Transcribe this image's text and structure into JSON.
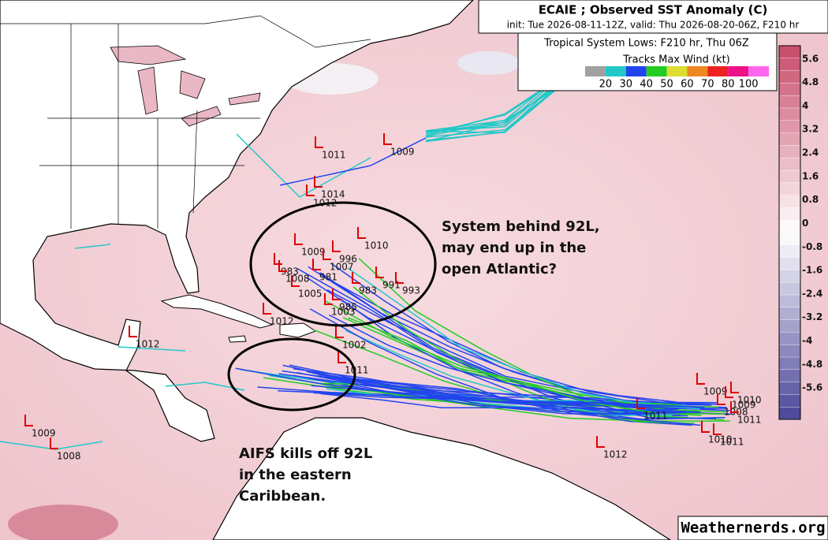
{
  "header": {
    "title": "ECAIE ; Observed SST Anomaly (C)",
    "subtitle": "init: Tue 2026-08-11-12Z, valid: Thu 2026-08-20-06Z, F210 hr"
  },
  "legend": {
    "title": "Tropical System Lows: F210 hr, Thu 06Z",
    "tracks_title": "Tracks Max Wind (kt)",
    "wind_labels": [
      "20",
      "30",
      "40",
      "50",
      "60",
      "70",
      "80",
      "100"
    ],
    "wind_colors": [
      "#a0a0a0",
      "#22c8c8",
      "#2244ee",
      "#22cc22",
      "#dddd33",
      "#ee8822",
      "#ee2222",
      "#ee1188",
      "#ff66ee"
    ]
  },
  "colorbar": {
    "labels": [
      "5.6",
      "4.8",
      "4",
      "3.2",
      "2.4",
      "1.6",
      "0.8",
      "0",
      "-0.8",
      "-1.6",
      "-2.4",
      "-3.2",
      "-4",
      "-4.8",
      "-5.6"
    ]
  },
  "lows": [
    "1011",
    "1009",
    "1014",
    "1012",
    "1010",
    "1009",
    "996",
    "1007",
    "983",
    "1008",
    "981",
    "991",
    "993",
    "983",
    "1005",
    "985",
    "1003",
    "1012",
    "1012",
    "1002",
    "1011",
    "1009",
    "1008",
    "1009",
    "1010",
    "1009",
    "1008",
    "1011",
    "1011",
    "1012",
    "1010",
    "1011"
  ],
  "annotations": [
    [
      "System behind 92L,",
      "may end up in the",
      "open Atlantic?"
    ],
    [
      "AIFS kills off 92L",
      "in the eastern",
      "Caribbean."
    ]
  ],
  "watermark": "Weathernerds.org"
}
